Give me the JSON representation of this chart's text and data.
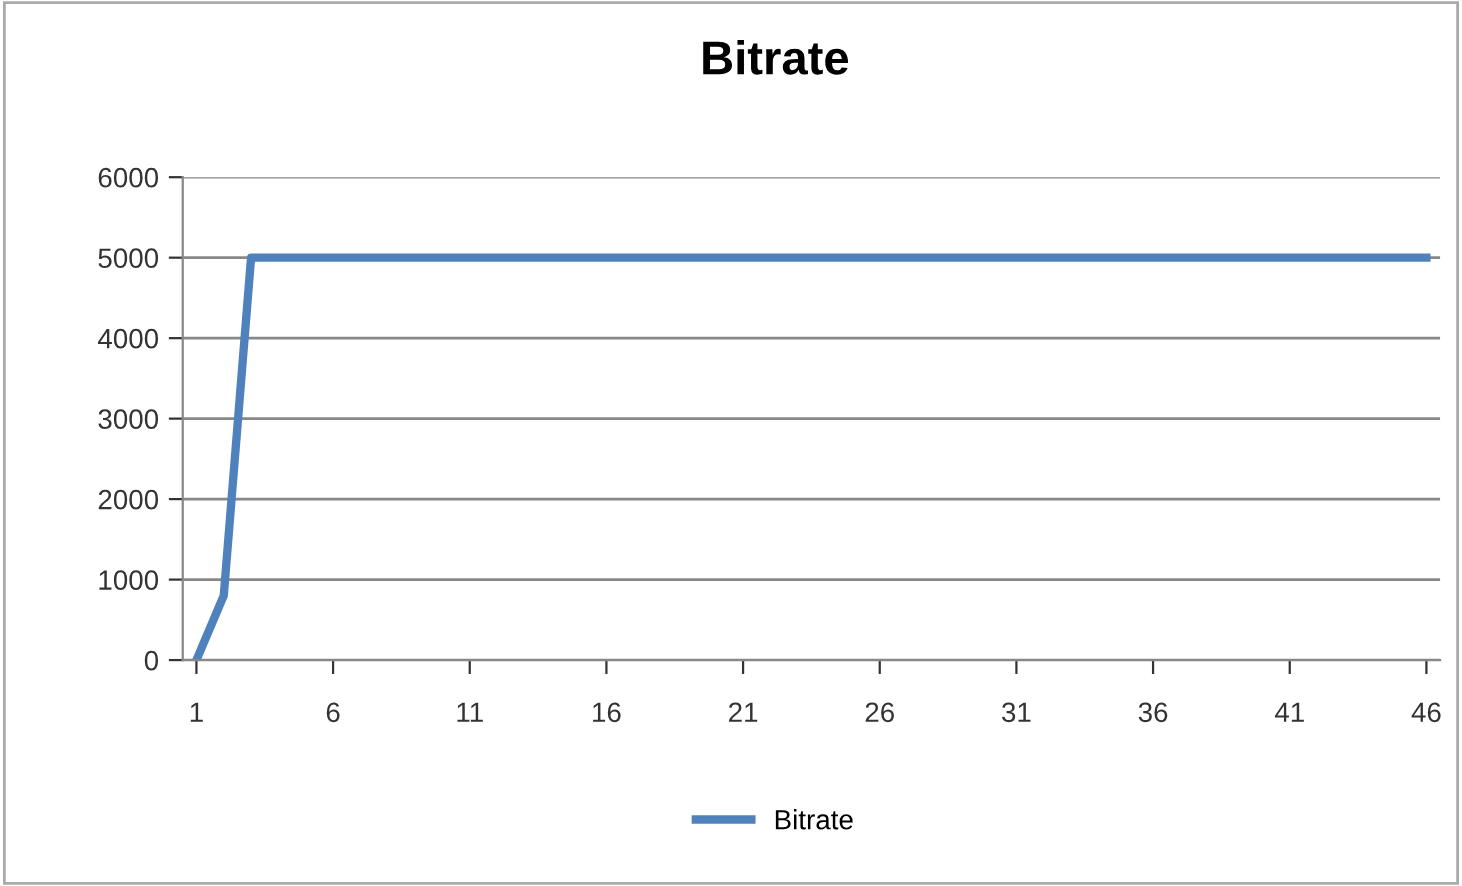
{
  "chart_data": {
    "type": "line",
    "title": "Bitrate",
    "categories": [
      "1",
      null,
      null,
      null,
      null,
      "6",
      null,
      null,
      null,
      null,
      "11",
      null,
      null,
      null,
      null,
      "16",
      null,
      null,
      null,
      null,
      "21",
      null,
      null,
      null,
      null,
      "26",
      null,
      null,
      null,
      null,
      "31",
      null,
      null,
      null,
      null,
      "36",
      null,
      null,
      null,
      null,
      "41",
      null,
      null,
      null,
      null,
      "46"
    ],
    "series": [
      {
        "name": "Bitrate",
        "color": "#4f81bd",
        "values": [
          0,
          800,
          5000,
          5000,
          5000,
          5000,
          5000,
          5000,
          5000,
          5000,
          5000,
          5000,
          5000,
          5000,
          5000,
          5000,
          5000,
          5000,
          5000,
          5000,
          5000,
          5000,
          5000,
          5000,
          5000,
          5000,
          5000,
          5000,
          5000,
          5000,
          5000,
          5000,
          5000,
          5000,
          5000,
          5000,
          5000,
          5000,
          5000,
          5000,
          5000,
          5000,
          5000,
          5000,
          5000,
          5000
        ]
      }
    ],
    "ylim": [
      0,
      6000
    ],
    "yticks": [
      0,
      1000,
      2000,
      3000,
      4000,
      5000,
      6000
    ],
    "grid": "y",
    "legend": "bottom",
    "marker": "none",
    "line_style": "solid"
  }
}
